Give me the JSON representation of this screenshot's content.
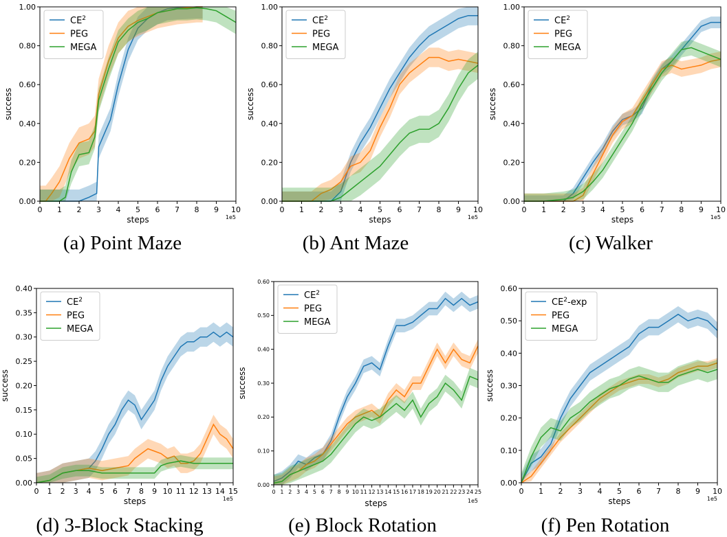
{
  "colors": {
    "ce2": "#1f77b4",
    "peg": "#ff7f0e",
    "mega": "#2ca02c"
  },
  "chart_data": [
    {
      "type": "line",
      "caption": "(a) Point Maze",
      "xlabel": "steps",
      "ylabel": "success",
      "x_exponent": "1e5",
      "xlim": [
        0,
        10
      ],
      "ylim": [
        0,
        1
      ],
      "xticks": [
        "0",
        "1",
        "2",
        "3",
        "4",
        "5",
        "6",
        "7",
        "8",
        "9",
        "10"
      ],
      "yticks": [
        "0.00",
        "0.20",
        "0.40",
        "0.60",
        "0.80",
        "1.00"
      ],
      "legend_location": "upper left",
      "series": [
        {
          "name": "CE",
          "sup": "2",
          "color": "#1f77b4",
          "x": [
            0,
            1,
            2,
            2.5,
            2.9,
            3,
            3.3,
            3.6,
            4,
            4.5,
            5,
            5.5,
            6,
            6.5,
            7,
            8,
            8.3
          ],
          "y": [
            0,
            0,
            0,
            0.02,
            0.04,
            0.28,
            0.35,
            0.42,
            0.6,
            0.78,
            0.89,
            0.94,
            0.97,
            0.99,
            0.995,
            1.0,
            1.0
          ],
          "band": 0.06
        },
        {
          "name": "PEG",
          "color": "#ff7f0e",
          "x": [
            0,
            0.3,
            0.6,
            1,
            1.5,
            2,
            2.5,
            2.8,
            3,
            3.5,
            4,
            4.5,
            5,
            5.5,
            6,
            7,
            8,
            8.3
          ],
          "y": [
            0,
            0,
            0.04,
            0.1,
            0.22,
            0.3,
            0.32,
            0.36,
            0.55,
            0.72,
            0.84,
            0.9,
            0.93,
            0.95,
            0.97,
            0.99,
            1.0,
            1.0
          ],
          "band": 0.08
        },
        {
          "name": "MEGA",
          "color": "#2ca02c",
          "x": [
            0,
            1,
            1.3,
            1.6,
            2,
            2.5,
            2.8,
            3,
            3.5,
            4,
            4.5,
            5,
            5.5,
            6,
            6.5,
            7,
            7.5,
            8,
            8.5,
            9,
            9.5,
            10
          ],
          "y": [
            0,
            0,
            0.02,
            0.15,
            0.24,
            0.25,
            0.33,
            0.52,
            0.68,
            0.82,
            0.88,
            0.92,
            0.94,
            0.97,
            0.98,
            0.99,
            0.99,
            0.995,
            0.99,
            0.98,
            0.95,
            0.92
          ],
          "band": 0.06
        }
      ]
    },
    {
      "type": "line",
      "caption": "(b) Ant Maze",
      "xlabel": "steps",
      "ylabel": "success",
      "x_exponent": "1e5",
      "xlim": [
        0,
        10
      ],
      "ylim": [
        0,
        1
      ],
      "xticks": [
        "0",
        "1",
        "2",
        "3",
        "4",
        "5",
        "6",
        "7",
        "8",
        "9",
        "10"
      ],
      "yticks": [
        "0.00",
        "0.20",
        "0.40",
        "0.60",
        "0.80",
        "1.00"
      ],
      "legend_location": "upper left",
      "series": [
        {
          "name": "CE",
          "sup": "2",
          "color": "#1f77b4",
          "x": [
            0,
            1,
            2,
            2.5,
            3,
            3.5,
            4,
            4.5,
            5,
            5.5,
            6,
            6.5,
            7,
            7.5,
            8,
            8.5,
            9,
            9.5,
            10
          ],
          "y": [
            0,
            0,
            0,
            0,
            0.05,
            0.2,
            0.3,
            0.38,
            0.48,
            0.58,
            0.66,
            0.74,
            0.8,
            0.85,
            0.88,
            0.91,
            0.94,
            0.955,
            0.955
          ],
          "band": 0.05
        },
        {
          "name": "PEG",
          "color": "#ff7f0e",
          "x": [
            0,
            1,
            1.5,
            2,
            2.5,
            3,
            3.5,
            4,
            4.5,
            5,
            5.5,
            6,
            6.5,
            7,
            7.5,
            8,
            8.5,
            9,
            9.5,
            10
          ],
          "y": [
            0,
            0,
            0,
            0.04,
            0.06,
            0.1,
            0.18,
            0.2,
            0.26,
            0.38,
            0.48,
            0.6,
            0.66,
            0.7,
            0.74,
            0.74,
            0.72,
            0.73,
            0.72,
            0.71
          ],
          "band": 0.05
        },
        {
          "name": "MEGA",
          "color": "#2ca02c",
          "x": [
            0,
            1,
            2,
            2.5,
            3,
            3.5,
            4,
            4.5,
            5,
            5.5,
            6,
            6.5,
            7,
            7.5,
            8,
            8.5,
            9,
            9.5,
            10
          ],
          "y": [
            0,
            0,
            0,
            0,
            0.02,
            0.06,
            0.1,
            0.14,
            0.18,
            0.24,
            0.3,
            0.35,
            0.37,
            0.37,
            0.4,
            0.48,
            0.58,
            0.66,
            0.7
          ],
          "band": 0.07
        }
      ]
    },
    {
      "type": "line",
      "caption": "(c) Walker",
      "xlabel": "steps",
      "ylabel": "success",
      "x_exponent": "1e5",
      "xlim": [
        0,
        10
      ],
      "ylim": [
        0,
        1
      ],
      "xticks": [
        "0",
        "1",
        "2",
        "3",
        "4",
        "5",
        "6",
        "7",
        "8",
        "9",
        "10"
      ],
      "yticks": [
        "0.00",
        "0.20",
        "0.40",
        "0.60",
        "0.80",
        "1.00"
      ],
      "legend_location": "upper left",
      "series": [
        {
          "name": "CE",
          "sup": "2",
          "color": "#1f77b4",
          "x": [
            0,
            1,
            2,
            2.5,
            3,
            3.5,
            4,
            4.5,
            5,
            5.5,
            6,
            6.5,
            7,
            7.5,
            8,
            8.5,
            9,
            9.5,
            10
          ],
          "y": [
            0,
            0,
            0,
            0.04,
            0.12,
            0.2,
            0.27,
            0.36,
            0.42,
            0.44,
            0.48,
            0.6,
            0.68,
            0.72,
            0.78,
            0.84,
            0.9,
            0.92,
            0.92
          ],
          "band": 0.03
        },
        {
          "name": "PEG",
          "color": "#ff7f0e",
          "x": [
            0,
            1,
            2,
            2.5,
            3,
            3.5,
            4,
            4.5,
            5,
            5.5,
            6,
            6.5,
            7,
            7.5,
            8,
            8.5,
            9,
            9.5,
            10
          ],
          "y": [
            0,
            0,
            0,
            0,
            0.03,
            0.14,
            0.24,
            0.34,
            0.41,
            0.44,
            0.52,
            0.6,
            0.68,
            0.7,
            0.68,
            0.69,
            0.7,
            0.72,
            0.73
          ],
          "band": 0.04
        },
        {
          "name": "MEGA",
          "color": "#2ca02c",
          "x": [
            0,
            1,
            2,
            2.5,
            3,
            3.5,
            4,
            4.5,
            5,
            5.5,
            6,
            6.5,
            7,
            7.5,
            8,
            8.5,
            9,
            9.5,
            10
          ],
          "y": [
            0,
            0,
            0.01,
            0.02,
            0.05,
            0.1,
            0.16,
            0.24,
            0.32,
            0.4,
            0.5,
            0.58,
            0.66,
            0.72,
            0.78,
            0.79,
            0.77,
            0.75,
            0.73
          ],
          "band": 0.04
        }
      ]
    },
    {
      "type": "line",
      "caption": "(d) 3-Block Stacking",
      "xlabel": "steps",
      "ylabel": "success",
      "x_exponent": "1e5",
      "xlim": [
        0,
        15
      ],
      "ylim": [
        0,
        0.4
      ],
      "xticks": [
        "0",
        "1",
        "2",
        "3",
        "4",
        "5",
        "6",
        "7",
        "8",
        "9",
        "10",
        "11",
        "12",
        "13",
        "14",
        "15"
      ],
      "yticks": [
        "0.00",
        "0.05",
        "0.10",
        "0.15",
        "0.20",
        "0.25",
        "0.30",
        "0.35",
        "0.40"
      ],
      "legend_location": "upper left",
      "series": [
        {
          "name": "CE",
          "sup": "2",
          "color": "#1f77b4",
          "x": [
            0,
            1,
            2,
            3,
            4,
            4.5,
            5,
            5.5,
            6,
            6.5,
            7,
            7.5,
            8,
            8.5,
            9,
            9.5,
            10,
            10.5,
            11,
            11.5,
            12,
            12.5,
            13,
            13.5,
            14,
            14.5,
            15
          ],
          "y": [
            0,
            0.005,
            0.02,
            0.025,
            0.03,
            0.045,
            0.07,
            0.1,
            0.12,
            0.15,
            0.17,
            0.16,
            0.13,
            0.15,
            0.17,
            0.21,
            0.24,
            0.26,
            0.28,
            0.29,
            0.29,
            0.3,
            0.3,
            0.31,
            0.3,
            0.31,
            0.3
          ],
          "band": 0.02
        },
        {
          "name": "PEG",
          "color": "#ff7f0e",
          "x": [
            0,
            1,
            2,
            3,
            4,
            5,
            6,
            7,
            7.5,
            8,
            8.5,
            9,
            9.5,
            10,
            10.5,
            11,
            11.5,
            12,
            12.5,
            13,
            13.5,
            14,
            14.5,
            15
          ],
          "y": [
            0,
            0.005,
            0.02,
            0.025,
            0.03,
            0.025,
            0.03,
            0.035,
            0.05,
            0.06,
            0.07,
            0.065,
            0.06,
            0.05,
            0.055,
            0.04,
            0.04,
            0.045,
            0.06,
            0.09,
            0.12,
            0.1,
            0.09,
            0.07
          ],
          "band": 0.02
        },
        {
          "name": "MEGA",
          "color": "#2ca02c",
          "x": [
            0,
            1,
            2,
            3,
            4,
            5,
            6,
            7,
            8,
            9,
            9.5,
            10,
            11,
            12,
            13,
            14,
            15
          ],
          "y": [
            0,
            0.005,
            0.02,
            0.025,
            0.025,
            0.02,
            0.02,
            0.02,
            0.02,
            0.02,
            0.035,
            0.04,
            0.045,
            0.04,
            0.04,
            0.04,
            0.04
          ],
          "band": 0.012
        }
      ]
    },
    {
      "type": "line",
      "caption": "(e) Block Rotation",
      "xlabel": "steps",
      "ylabel": "success",
      "x_exponent": "1e5",
      "xlim": [
        0,
        25
      ],
      "ylim": [
        0,
        0.6
      ],
      "xticks": [
        "0",
        "1",
        "2",
        "3",
        "4",
        "5",
        "6",
        "7",
        "8",
        "9",
        "10",
        "11",
        "12",
        "13",
        "14",
        "15",
        "16",
        "17",
        "18",
        "19",
        "20",
        "21",
        "22",
        "23",
        "24",
        "25"
      ],
      "yticks": [
        "0.00",
        "0.10",
        "0.20",
        "0.30",
        "0.40",
        "0.50",
        "0.60"
      ],
      "legend_location": "upper left",
      "series": [
        {
          "name": "CE",
          "sup": "2",
          "color": "#1f77b4",
          "x": [
            0,
            1,
            2,
            3,
            4,
            5,
            6,
            7,
            8,
            9,
            10,
            11,
            12,
            13,
            14,
            15,
            16,
            17,
            18,
            19,
            20,
            21,
            22,
            23,
            24,
            25
          ],
          "y": [
            0.01,
            0.02,
            0.04,
            0.07,
            0.06,
            0.08,
            0.09,
            0.13,
            0.2,
            0.26,
            0.3,
            0.35,
            0.36,
            0.34,
            0.41,
            0.47,
            0.47,
            0.48,
            0.5,
            0.52,
            0.52,
            0.55,
            0.53,
            0.55,
            0.53,
            0.54
          ],
          "band": 0.02
        },
        {
          "name": "PEG",
          "color": "#ff7f0e",
          "x": [
            0,
            1,
            2,
            3,
            4,
            5,
            6,
            7,
            8,
            9,
            10,
            11,
            12,
            13,
            14,
            15,
            16,
            17,
            18,
            19,
            20,
            21,
            22,
            23,
            24,
            25
          ],
          "y": [
            0.005,
            0.01,
            0.03,
            0.04,
            0.06,
            0.07,
            0.09,
            0.12,
            0.15,
            0.18,
            0.2,
            0.21,
            0.22,
            0.2,
            0.25,
            0.28,
            0.26,
            0.3,
            0.3,
            0.35,
            0.4,
            0.36,
            0.4,
            0.37,
            0.36,
            0.41
          ],
          "band": 0.02
        },
        {
          "name": "MEGA",
          "color": "#2ca02c",
          "x": [
            0,
            1,
            2,
            3,
            4,
            5,
            6,
            7,
            8,
            9,
            10,
            11,
            12,
            13,
            14,
            15,
            16,
            17,
            18,
            19,
            20,
            21,
            22,
            23,
            24,
            25
          ],
          "y": [
            0.005,
            0.01,
            0.03,
            0.04,
            0.05,
            0.06,
            0.07,
            0.09,
            0.12,
            0.15,
            0.18,
            0.2,
            0.19,
            0.2,
            0.22,
            0.24,
            0.22,
            0.25,
            0.2,
            0.24,
            0.26,
            0.3,
            0.28,
            0.25,
            0.32,
            0.31
          ],
          "band": 0.025
        }
      ]
    },
    {
      "type": "line",
      "caption": "(f) Pen Rotation",
      "xlabel": "steps",
      "ylabel": "success",
      "x_exponent": "1e5",
      "xlim": [
        0,
        10
      ],
      "ylim": [
        0,
        0.6
      ],
      "xticks": [
        "0",
        "1",
        "2",
        "3",
        "4",
        "5",
        "6",
        "7",
        "8",
        "9",
        "10"
      ],
      "yticks": [
        "0.00",
        "0.10",
        "0.20",
        "0.30",
        "0.40",
        "0.50",
        "0.60"
      ],
      "legend_location": "upper left",
      "series": [
        {
          "name": "CE",
          "sup": "2",
          "suffix": "-exp",
          "color": "#1f77b4",
          "x": [
            0,
            0.5,
            1,
            1.5,
            2,
            2.5,
            3,
            3.5,
            4,
            4.5,
            5,
            5.5,
            6,
            6.5,
            7,
            7.5,
            8,
            8.5,
            9,
            9.5,
            10
          ],
          "y": [
            0,
            0.06,
            0.08,
            0.12,
            0.2,
            0.26,
            0.3,
            0.34,
            0.36,
            0.38,
            0.4,
            0.42,
            0.46,
            0.48,
            0.48,
            0.5,
            0.52,
            0.5,
            0.51,
            0.5,
            0.47
          ],
          "band": 0.025
        },
        {
          "name": "PEG",
          "color": "#ff7f0e",
          "x": [
            0,
            0.5,
            1,
            1.5,
            2,
            2.5,
            3,
            3.5,
            4,
            4.5,
            5,
            5.5,
            6,
            6.5,
            7,
            7.5,
            8,
            8.5,
            9,
            9.5,
            10
          ],
          "y": [
            0,
            0.02,
            0.06,
            0.1,
            0.14,
            0.17,
            0.2,
            0.23,
            0.26,
            0.28,
            0.3,
            0.31,
            0.32,
            0.32,
            0.31,
            0.32,
            0.34,
            0.35,
            0.36,
            0.36,
            0.37
          ],
          "band": 0.015
        },
        {
          "name": "MEGA",
          "color": "#2ca02c",
          "x": [
            0,
            0.5,
            1,
            1.5,
            2,
            2.5,
            3,
            3.5,
            4,
            4.5,
            5,
            5.5,
            6,
            6.5,
            7,
            7.5,
            8,
            8.5,
            9,
            9.5,
            10
          ],
          "y": [
            0,
            0.08,
            0.14,
            0.17,
            0.16,
            0.2,
            0.22,
            0.25,
            0.27,
            0.29,
            0.3,
            0.32,
            0.33,
            0.32,
            0.31,
            0.31,
            0.33,
            0.34,
            0.35,
            0.34,
            0.35
          ],
          "band": 0.03
        }
      ]
    }
  ]
}
